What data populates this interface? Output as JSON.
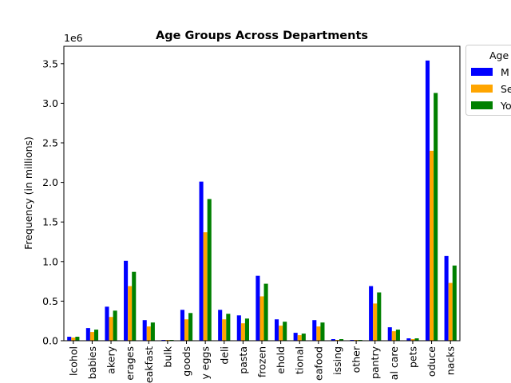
{
  "chart_data": {
    "type": "bar",
    "title": "Age Groups Across Departments",
    "ylabel": "Frequency (in millions)",
    "xlabel": "",
    "offset_label": "1e6",
    "ylim": [
      0,
      3.72
    ],
    "yticks": [
      0.0,
      0.5,
      1.0,
      1.5,
      2.0,
      2.5,
      3.0,
      3.5
    ],
    "ytick_labels": [
      "0.0",
      "0.5",
      "1.0",
      "1.5",
      "2.0",
      "2.5",
      "3.0",
      "3.5"
    ],
    "grid": false,
    "legend_position": "upper-right-outside",
    "legend_title": "Age",
    "categories": [
      "alcohol",
      "babies",
      "bakery",
      "beverages",
      "breakfast",
      "bulk",
      "canned goods",
      "dairy eggs",
      "deli",
      "dry goods pasta",
      "frozen",
      "household",
      "international",
      "meat seafood",
      "missing",
      "other",
      "pantry",
      "personal care",
      "pets",
      "produce",
      "snacks"
    ],
    "tick_labels": [
      "lcohol",
      "babies",
      "akery",
      "erages",
      "eakfast",
      "bulk",
      "goods",
      "y eggs",
      "deli",
      "pasta",
      "frozen",
      "ehold",
      "tional",
      "eafood",
      "issing",
      "other",
      "pantry",
      "al care",
      "pets",
      "oduce",
      "nacks"
    ],
    "series": [
      {
        "name": "M",
        "color": "#0000ff",
        "values": [
          0.05,
          0.16,
          0.43,
          1.01,
          0.26,
          0.01,
          0.39,
          2.01,
          0.39,
          0.32,
          0.82,
          0.27,
          0.1,
          0.26,
          0.02,
          0.01,
          0.69,
          0.17,
          0.03,
          3.54,
          1.07
        ]
      },
      {
        "name": "Se",
        "color": "#ffa500",
        "values": [
          0.04,
          0.11,
          0.3,
          0.69,
          0.18,
          0.01,
          0.27,
          1.37,
          0.27,
          0.22,
          0.56,
          0.19,
          0.07,
          0.18,
          0.01,
          0.01,
          0.47,
          0.12,
          0.02,
          2.4,
          0.73
        ]
      },
      {
        "name": "Yo",
        "color": "#008000",
        "values": [
          0.05,
          0.14,
          0.38,
          0.87,
          0.23,
          0.01,
          0.35,
          1.79,
          0.34,
          0.28,
          0.72,
          0.24,
          0.09,
          0.23,
          0.02,
          0.01,
          0.61,
          0.14,
          0.03,
          3.13,
          0.95
        ]
      }
    ]
  }
}
